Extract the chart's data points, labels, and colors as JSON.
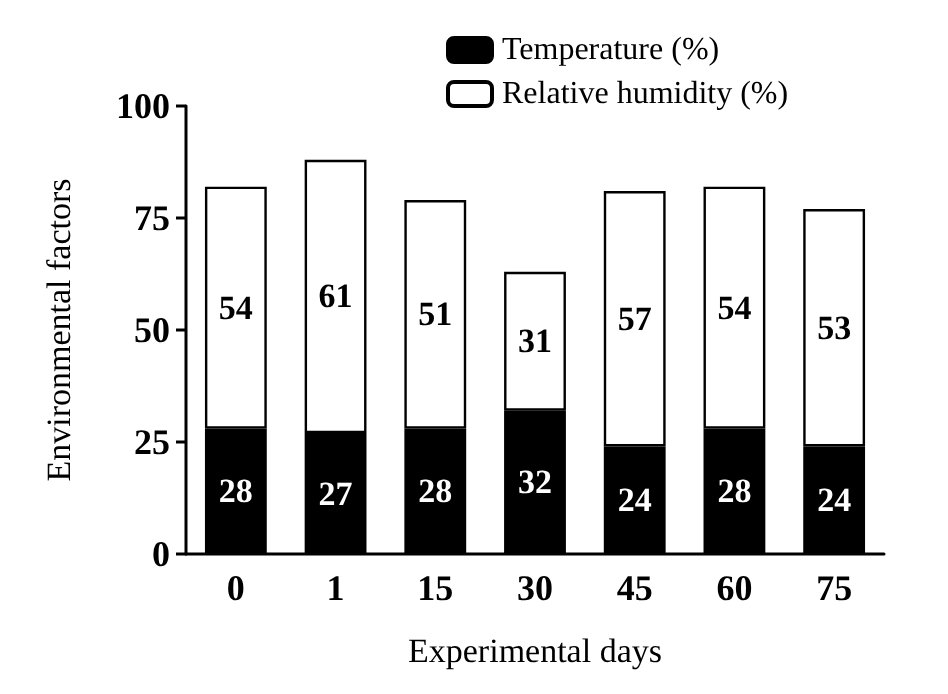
{
  "chart_data": {
    "type": "bar",
    "stacked": true,
    "xlabel": "Experimental days",
    "ylabel": "Environmental factors",
    "categories": [
      "0",
      "1",
      "15",
      "30",
      "45",
      "60",
      "75"
    ],
    "series": [
      {
        "name": "Temperature (%)",
        "color": "#000000",
        "values": [
          28,
          27,
          28,
          32,
          24,
          28,
          24
        ]
      },
      {
        "name": "Relative humidity (%)",
        "color": "#ffffff",
        "values": [
          54,
          61,
          51,
          31,
          57,
          54,
          53
        ]
      }
    ],
    "ylim": [
      0,
      100
    ],
    "yticks": [
      0,
      25,
      50,
      75,
      100
    ],
    "data_labels": true,
    "grid": false,
    "legend": "top right"
  }
}
